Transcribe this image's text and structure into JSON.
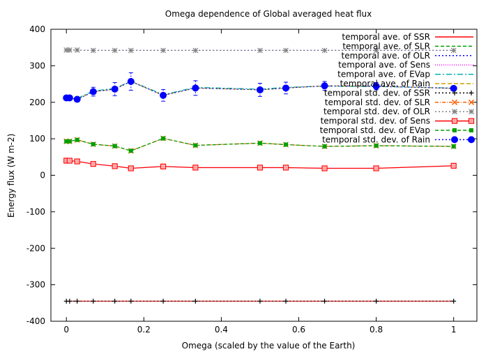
{
  "chart_data": {
    "type": "line",
    "title": "Omega dependence of Global averaged heat flux",
    "xlabel": "Omega (scaled by the value of the Earth)",
    "ylabel": "Energy flux (W m-2)",
    "xlim": [
      -0.04,
      1.06
    ],
    "ylim": [
      -400,
      400
    ],
    "xticks": [
      0,
      0.2,
      0.4,
      0.6,
      0.8,
      1
    ],
    "xtick_labels": [
      "0",
      "0.2",
      "0.4",
      "0.6",
      "0.8",
      "1"
    ],
    "yticks": [
      -400,
      -300,
      -200,
      -100,
      0,
      100,
      200,
      300,
      400
    ],
    "ytick_labels": [
      "-400",
      "-300",
      "-200",
      "-100",
      "0",
      "100",
      "200",
      "300",
      "400"
    ],
    "grid": false,
    "legend_position": "top-right",
    "x": [
      0,
      0.0083,
      0.0278,
      0.0694,
      0.125,
      0.1667,
      0.25,
      0.3333,
      0.5,
      0.5667,
      0.6667,
      0.8,
      1.0
    ],
    "series": [
      {
        "name": "temporal ave. of SSR",
        "color": "#ff0000",
        "dash": "",
        "values": [
          -345,
          -345,
          -345,
          -345,
          -345,
          -345,
          -345,
          -345,
          -345,
          -345,
          -345,
          -345,
          -345
        ]
      },
      {
        "name": "temporal ave. of SLR",
        "color": "#00a000",
        "dash": "5,3",
        "values": [
          93,
          93,
          97,
          85,
          80,
          67,
          101,
          82,
          88,
          84,
          79,
          81,
          79
        ]
      },
      {
        "name": "temporal ave. of OLR",
        "color": "#0000ff",
        "dash": "2,3",
        "values": [
          343,
          343,
          343,
          342,
          342,
          342,
          342,
          342,
          342,
          342,
          342,
          342,
          342
        ]
      },
      {
        "name": "temporal ave. of Sens",
        "color": "#ff00ff",
        "dash": "1,2",
        "values": [
          40,
          40,
          38,
          31,
          25,
          19,
          24,
          21,
          21,
          21,
          19,
          19,
          26
        ]
      },
      {
        "name": "temporal ave. of EVap",
        "color": "#00b0b0",
        "dash": "8,3,2,3",
        "values": [
          214,
          213,
          211,
          231,
          238,
          258,
          221,
          241,
          236,
          241,
          244,
          243,
          239
        ]
      },
      {
        "name": "temporal ave. of Rain",
        "color": "#c8a000",
        "dash": "6,3",
        "values": [
          212,
          212,
          208,
          229,
          236,
          257,
          219,
          239,
          234,
          239,
          245,
          244,
          238
        ]
      },
      {
        "name": "temporal std. dev. of SSR",
        "color": "#000000",
        "dash": "2,3",
        "marker": "plus",
        "values": [
          -345,
          -345,
          -345,
          -345,
          -345,
          -345,
          -345,
          -345,
          -345,
          -345,
          -345,
          -345,
          -345
        ]
      },
      {
        "name": "temporal std. dev. of SLR",
        "color": "#ff6000",
        "dash": "5,2,1,2",
        "marker": "cross",
        "values": [
          93,
          93,
          97,
          85,
          80,
          67,
          101,
          82,
          88,
          84,
          79,
          81,
          79
        ]
      },
      {
        "name": "temporal std. dev. of OLR",
        "color": "#808080",
        "dash": "2,3",
        "marker": "star",
        "values": [
          343,
          343,
          343,
          342,
          342,
          342,
          342,
          342,
          342,
          342,
          342,
          342,
          342
        ]
      },
      {
        "name": "temporal std. dev. of Sens",
        "color": "#ff0000",
        "dash": "",
        "marker": "square",
        "values": [
          40,
          40,
          38,
          31,
          25,
          19,
          24,
          21,
          21,
          21,
          19,
          19,
          26
        ]
      },
      {
        "name": "temporal std. dev. of EVap",
        "color": "#00a000",
        "dash": "5,3",
        "marker": "filled-square",
        "values": [
          93,
          93,
          97,
          85,
          80,
          67,
          101,
          82,
          88,
          84,
          79,
          81,
          79
        ]
      },
      {
        "name": "temporal std. dev. of Rain",
        "color": "#0000ff",
        "dash": "2,3",
        "marker": "circle",
        "values": [
          212,
          212,
          208,
          229,
          236,
          257,
          219,
          239,
          234,
          239,
          245,
          244,
          238
        ]
      }
    ],
    "rain_error": [
      4,
      4,
      5,
      12,
      18,
      24,
      16,
      20,
      18,
      16,
      12,
      10,
      5
    ]
  }
}
